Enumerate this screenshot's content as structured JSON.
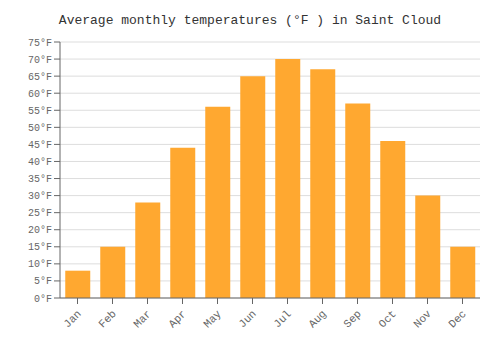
{
  "chart_data": {
    "type": "bar",
    "title": "Average monthly temperatures (°F ) in Saint Cloud",
    "categories": [
      "Jan",
      "Feb",
      "Mar",
      "Apr",
      "May",
      "Jun",
      "Jul",
      "Aug",
      "Sep",
      "Oct",
      "Nov",
      "Dec"
    ],
    "values": [
      8,
      15,
      28,
      44,
      56,
      65,
      70,
      67,
      57,
      46,
      30,
      15
    ],
    "color": "#FFA830",
    "ylim": [
      0,
      75
    ],
    "yticks": [
      {
        "value": 0,
        "label": "0°F"
      },
      {
        "value": 5,
        "label": "5°F"
      },
      {
        "value": 10,
        "label": "10°F"
      },
      {
        "value": 15,
        "label": "15°F"
      },
      {
        "value": 20,
        "label": "20°F"
      },
      {
        "value": 25,
        "label": "25°F"
      },
      {
        "value": 30,
        "label": "30°F"
      },
      {
        "value": 35,
        "label": "35°F"
      },
      {
        "value": 40,
        "label": "40°F"
      },
      {
        "value": 45,
        "label": "45°F"
      },
      {
        "value": 50,
        "label": "50°F"
      },
      {
        "value": 55,
        "label": "55°F"
      },
      {
        "value": 60,
        "label": "60°F"
      },
      {
        "value": 65,
        "label": "65°F"
      },
      {
        "value": 70,
        "label": "70°F"
      },
      {
        "value": 75,
        "label": "75°F"
      }
    ],
    "grid": true
  }
}
